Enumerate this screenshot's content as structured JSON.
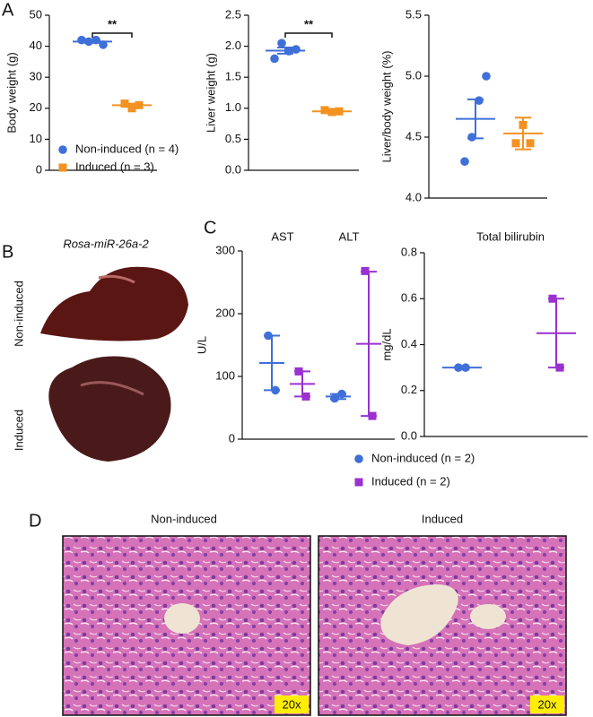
{
  "chart_data": [
    {
      "type": "dot",
      "y_label": "Body weight (g)",
      "ylim": [
        0,
        50
      ],
      "yticks": [
        0,
        10,
        20,
        30,
        40,
        50
      ],
      "annotation": "**",
      "legend": "bottom-left",
      "series": [
        {
          "name": "Non-induced (n = 4)",
          "color": "#3f6fd9",
          "marker": "circle",
          "values": [
            42,
            41.5,
            42,
            40.5
          ],
          "mean": 41.5,
          "sem": 0.4
        },
        {
          "name": "Induced (n = 3)",
          "color": "#f39221",
          "marker": "square",
          "values": [
            21.5,
            20,
            21
          ],
          "mean": 21,
          "sem": 0.5
        }
      ]
    },
    {
      "type": "dot",
      "y_label": "Liver weight (g)",
      "ylim": [
        0,
        2.5
      ],
      "yticks": [
        {
          "value": 0,
          "label": "0.0"
        },
        0.5,
        {
          "value": 1,
          "label": "1.0"
        },
        1.5,
        {
          "value": 2,
          "label": "2.0"
        },
        2.5
      ],
      "annotation": "**",
      "series": [
        {
          "color": "#3f6fd9",
          "marker": "circle",
          "values": [
            1.8,
            2.05,
            1.92,
            1.95
          ],
          "mean": 1.93,
          "sem": 0.05
        },
        {
          "color": "#f39221",
          "marker": "square",
          "values": [
            0.97,
            0.94,
            0.95
          ],
          "mean": 0.95,
          "sem": 0.01
        }
      ]
    },
    {
      "type": "dot",
      "y_label": "Liver/body weight (%)",
      "ylim": [
        4.0,
        5.5
      ],
      "yticks": [
        {
          "value": 4,
          "label": "4.0"
        },
        4.5,
        {
          "value": 5,
          "label": "5.0"
        },
        5.5
      ],
      "series": [
        {
          "color": "#3f6fd9",
          "marker": "circle",
          "values": [
            4.3,
            4.5,
            4.8,
            5.0
          ],
          "mean": 4.65,
          "sem": 0.16
        },
        {
          "color": "#f39221",
          "marker": "square",
          "values": [
            4.45,
            4.6,
            4.45
          ],
          "mean": 4.53,
          "sem": 0.13
        }
      ]
    },
    {
      "type": "dot",
      "y_label": "U/L",
      "ylim": [
        0,
        300
      ],
      "yticks": [
        0,
        100,
        200,
        300
      ],
      "categories": [
        "AST",
        "ALT"
      ],
      "legend": "below",
      "series": [
        {
          "name": "Non-induced (n = 2)",
          "color": "#3f6fd9",
          "marker": "circle",
          "values": [
            [
              165,
              78
            ],
            [
              65,
              72
            ]
          ],
          "mean": [
            121.5,
            68
          ],
          "sem": [
            43.5,
            4
          ]
        },
        {
          "name": "Induced (n = 2)",
          "color": "#9b30d0",
          "marker": "square",
          "values": [
            [
              108,
              68
            ],
            [
              268,
              37
            ]
          ],
          "mean": [
            88,
            152
          ],
          "sem": [
            20,
            115
          ]
        }
      ]
    },
    {
      "type": "dot",
      "title": "Total bilirubin",
      "y_label": "mg/dL",
      "ylim": [
        0,
        0.8
      ],
      "yticks": [
        {
          "value": 0,
          "label": "0.0"
        },
        0.2,
        0.4,
        0.6,
        0.8
      ],
      "series": [
        {
          "color": "#3f6fd9",
          "marker": "circle",
          "values": [
            0.3,
            0.3
          ],
          "mean": 0.3,
          "sem": 0
        },
        {
          "color": "#9b30d0",
          "marker": "square",
          "values": [
            0.6,
            0.3
          ],
          "mean": 0.45,
          "sem": 0.15
        }
      ]
    }
  ],
  "panel_labels": [
    "A",
    "B",
    "C",
    "D"
  ],
  "liver_photos": {
    "title": "Rosa-miR-26a-2",
    "rows": [
      "Non-induced",
      "Induced"
    ]
  },
  "histology": {
    "columns": [
      "Non-induced",
      "Induced"
    ],
    "magnification": [
      "20x",
      "20x"
    ]
  }
}
